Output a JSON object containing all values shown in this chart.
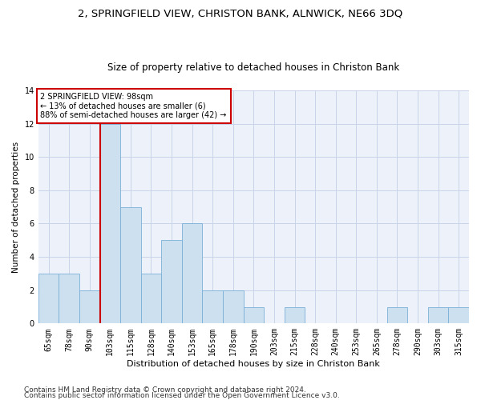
{
  "title1": "2, SPRINGFIELD VIEW, CHRISTON BANK, ALNWICK, NE66 3DQ",
  "title2": "Size of property relative to detached houses in Christon Bank",
  "xlabel": "Distribution of detached houses by size in Christon Bank",
  "ylabel": "Number of detached properties",
  "categories": [
    "65sqm",
    "78sqm",
    "90sqm",
    "103sqm",
    "115sqm",
    "128sqm",
    "140sqm",
    "153sqm",
    "165sqm",
    "178sqm",
    "190sqm",
    "203sqm",
    "215sqm",
    "228sqm",
    "240sqm",
    "253sqm",
    "265sqm",
    "278sqm",
    "290sqm",
    "303sqm",
    "315sqm"
  ],
  "values": [
    3,
    3,
    2,
    12,
    7,
    3,
    5,
    6,
    2,
    2,
    1,
    0,
    1,
    0,
    0,
    0,
    0,
    1,
    0,
    1,
    1
  ],
  "bar_color": "#cce0f0",
  "bar_edge_color": "#7ab0d8",
  "highlight_line_color": "#cc0000",
  "annotation_text": "2 SPRINGFIELD VIEW: 98sqm\n← 13% of detached houses are smaller (6)\n88% of semi-detached houses are larger (42) →",
  "annotation_box_color": "#cc0000",
  "ylim": [
    0,
    14
  ],
  "yticks": [
    0,
    2,
    4,
    6,
    8,
    10,
    12,
    14
  ],
  "grid_color": "#c8d4e8",
  "background_color": "#edf2fa",
  "footer1": "Contains HM Land Registry data © Crown copyright and database right 2024.",
  "footer2": "Contains public sector information licensed under the Open Government Licence v3.0.",
  "title1_fontsize": 9.5,
  "title2_fontsize": 8.5,
  "xlabel_fontsize": 8,
  "ylabel_fontsize": 7.5,
  "tick_fontsize": 7,
  "annotation_fontsize": 7,
  "footer_fontsize": 6.5
}
